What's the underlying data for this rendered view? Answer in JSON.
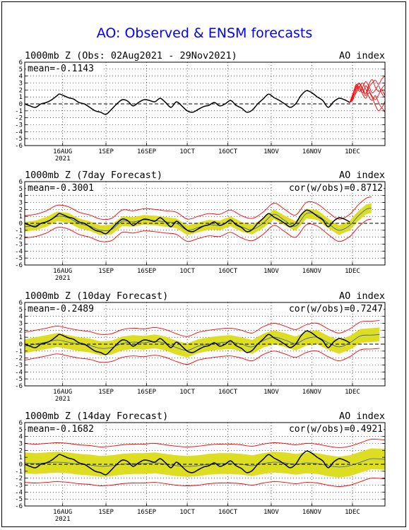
{
  "page": {
    "title": "AO: Observed & ENSM forecasts",
    "colors": {
      "title": "#0000ff",
      "observed": "#000000",
      "ensemble": "#ff0000",
      "spread": "#dddd22",
      "ensemble_mean": "#3355cc"
    }
  },
  "chart_data": [
    {
      "type": "line",
      "title": "1000mb Z (Obs: 02Aug2021 - 29Nov2021)",
      "right_label": "AO index",
      "mean_label": "mean=-0.1143",
      "cor_label": "",
      "ylim": [
        -6,
        6
      ],
      "yticks": [
        "6",
        "5",
        "4",
        "3",
        "2",
        "1",
        "0",
        "-1",
        "-2",
        "-3",
        "-4",
        "-5",
        "-6"
      ],
      "xlim": [
        0,
        133
      ],
      "xticks": [
        {
          "label": "16AUG",
          "sub": "2021",
          "x": 14
        },
        {
          "label": "1SEP",
          "sub": "",
          "x": 30
        },
        {
          "label": "16SEP",
          "sub": "",
          "x": 45
        },
        {
          "label": "1OCT",
          "sub": "",
          "x": 60
        },
        {
          "label": "16OCT",
          "sub": "",
          "x": 75
        },
        {
          "label": "1NOV",
          "sub": "",
          "x": 91
        },
        {
          "label": "16NOV",
          "sub": "",
          "x": 106
        },
        {
          "label": "1DEC",
          "sub": "",
          "x": 121
        }
      ],
      "grid": "dotted",
      "series": [
        {
          "role": "observed",
          "x": [
            0,
            2,
            4,
            6,
            8,
            10,
            12,
            13,
            16,
            18,
            20,
            22,
            24,
            26,
            28,
            30,
            32,
            34,
            36,
            38,
            40,
            42,
            44,
            46,
            48,
            50,
            52,
            54,
            56,
            58,
            60,
            62,
            64,
            66,
            68,
            70,
            72,
            74,
            76,
            78,
            80,
            82,
            84,
            86,
            88,
            90,
            92,
            94,
            96,
            98,
            100,
            102,
            104,
            106,
            108,
            110,
            112,
            114,
            116,
            118,
            120
          ],
          "y": [
            0.0,
            -0.3,
            -0.5,
            0.0,
            0.2,
            0.6,
            1.2,
            1.4,
            0.9,
            0.7,
            0.2,
            0.0,
            -0.5,
            -1.0,
            -1.2,
            -1.5,
            -0.8,
            0.0,
            0.6,
            0.4,
            -0.3,
            0.2,
            0.6,
            0.5,
            0.3,
            0.8,
            0.2,
            -0.5,
            0.3,
            -0.3,
            -1.0,
            -1.2,
            -0.8,
            -0.4,
            -0.2,
            0.2,
            -0.3,
            0.0,
            0.5,
            -0.2,
            -0.6,
            -1.2,
            -0.9,
            0.0,
            0.7,
            1.4,
            0.9,
            0.5,
            0.0,
            -0.5,
            0.0,
            1.2,
            1.9,
            1.6,
            1.0,
            0.5,
            -0.5,
            0.3,
            0.8,
            0.6,
            0.2
          ]
        },
        {
          "role": "ensemble",
          "members": [
            [
              0.2,
              1.0,
              2.5,
              3.0,
              2.2,
              1.5,
              2.8,
              3.5,
              2.4,
              1.8,
              2.0,
              1.2
            ],
            [
              0.2,
              1.4,
              2.8,
              2.2,
              1.6,
              2.6,
              1.9,
              1.1,
              0.6,
              1.3,
              2.2,
              2.8
            ],
            [
              0.2,
              0.8,
              1.6,
              2.4,
              3.0,
              2.1,
              1.0,
              0.5,
              1.2,
              0.2,
              -0.5,
              0.4
            ],
            [
              0.2,
              1.2,
              2.2,
              2.9,
              2.0,
              1.2,
              2.4,
              3.0,
              3.4,
              2.8,
              3.6,
              4.0
            ],
            [
              0.2,
              0.6,
              1.9,
              2.5,
              1.4,
              0.8,
              1.6,
              0.9,
              -0.2,
              -1.0,
              -0.6,
              -1.2
            ],
            [
              0.2,
              1.5,
              2.6,
              1.8,
              2.4,
              3.2,
              2.5,
              1.6,
              2.0,
              2.6,
              1.5,
              0.9
            ]
          ]
        }
      ]
    },
    {
      "type": "line",
      "title": "1000mb Z (7day Forecast)",
      "right_label": "AO index",
      "mean_label": "mean=-0.3001",
      "cor_label": "cor(w/obs)=0.8712",
      "ylim": [
        -6,
        6
      ],
      "yticks": [
        "6",
        "5",
        "4",
        "3",
        "2",
        "1",
        "0",
        "-1",
        "-2",
        "-3",
        "-4",
        "-5",
        "-6"
      ],
      "xlim": [
        0,
        133
      ],
      "xticks": [
        {
          "label": "16AUG",
          "sub": "2021",
          "x": 14
        },
        {
          "label": "1SEP",
          "sub": "",
          "x": 30
        },
        {
          "label": "16SEP",
          "sub": "",
          "x": 45
        },
        {
          "label": "1OCT",
          "sub": "",
          "x": 60
        },
        {
          "label": "16OCT",
          "sub": "",
          "x": 75
        },
        {
          "label": "1NOV",
          "sub": "",
          "x": 91
        },
        {
          "label": "16NOV",
          "sub": "",
          "x": 106
        },
        {
          "label": "1DEC",
          "sub": "",
          "x": 121
        }
      ],
      "grid": "dotted",
      "series": [
        {
          "role": "observed",
          "x": [
            0,
            2,
            4,
            6,
            8,
            10,
            12,
            13,
            16,
            18,
            20,
            22,
            24,
            26,
            28,
            30,
            32,
            34,
            36,
            38,
            40,
            42,
            44,
            46,
            48,
            50,
            52,
            54,
            56,
            58,
            60,
            62,
            64,
            66,
            68,
            70,
            72,
            74,
            76,
            78,
            80,
            82,
            84,
            86,
            88,
            90,
            92,
            94,
            96,
            98,
            100,
            102,
            104,
            106,
            108,
            110,
            112,
            114,
            116,
            118,
            120
          ],
          "y": [
            0.0,
            -0.3,
            -0.5,
            0.0,
            0.2,
            0.6,
            1.2,
            1.4,
            0.9,
            0.7,
            0.2,
            0.0,
            -0.5,
            -1.0,
            -1.2,
            -1.5,
            -0.8,
            0.0,
            0.6,
            0.4,
            -0.3,
            0.2,
            0.6,
            0.5,
            0.3,
            0.8,
            0.2,
            -0.5,
            0.3,
            -0.3,
            -1.0,
            -1.2,
            -0.8,
            -0.4,
            -0.2,
            0.2,
            -0.3,
            0.0,
            0.5,
            -0.2,
            -0.6,
            -1.2,
            -0.9,
            0.0,
            0.7,
            1.4,
            0.9,
            0.5,
            0.0,
            -0.5,
            0.0,
            1.2,
            1.9,
            1.6,
            1.0,
            0.5,
            -0.5,
            0.3,
            0.8,
            0.6,
            0.2
          ]
        },
        {
          "role": "forecast",
          "x": [
            0,
            4,
            8,
            12,
            16,
            20,
            24,
            28,
            32,
            36,
            40,
            44,
            48,
            52,
            56,
            60,
            64,
            68,
            72,
            76,
            80,
            84,
            88,
            92,
            96,
            100,
            104,
            108,
            112,
            116,
            120,
            123,
            126,
            128
          ],
          "y": [
            -0.5,
            -0.3,
            0.2,
            1.0,
            0.8,
            0.0,
            -0.4,
            -1.0,
            -0.9,
            0.3,
            0.2,
            0.5,
            0.4,
            0.2,
            0.0,
            -1.0,
            -0.6,
            -0.2,
            -0.3,
            0.3,
            -0.5,
            -0.9,
            0.0,
            1.3,
            0.4,
            -0.4,
            1.4,
            1.2,
            0.0,
            -1.0,
            -0.3,
            1.0,
            2.0,
            2.2
          ],
          "spread": 0.7,
          "outer": 1.6
        }
      ]
    },
    {
      "type": "line",
      "title": "1000mb Z (10day Forecast)",
      "right_label": "AO index",
      "mean_label": "mean=-0.2489",
      "cor_label": "cor(w/obs)=0.7247",
      "ylim": [
        -6,
        6
      ],
      "yticks": [
        "6",
        "5",
        "4",
        "3",
        "2",
        "1",
        "0",
        "-1",
        "-2",
        "-3",
        "-4",
        "-5",
        "-6"
      ],
      "xlim": [
        0,
        133
      ],
      "xticks": [
        {
          "label": "16AUG",
          "sub": "2021",
          "x": 14
        },
        {
          "label": "1SEP",
          "sub": "",
          "x": 30
        },
        {
          "label": "16SEP",
          "sub": "",
          "x": 45
        },
        {
          "label": "1OCT",
          "sub": "",
          "x": 60
        },
        {
          "label": "16OCT",
          "sub": "",
          "x": 75
        },
        {
          "label": "1NOV",
          "sub": "",
          "x": 91
        },
        {
          "label": "16NOV",
          "sub": "",
          "x": 106
        },
        {
          "label": "1DEC",
          "sub": "",
          "x": 121
        }
      ],
      "grid": "dotted",
      "series": [
        {
          "role": "observed",
          "x": [
            0,
            2,
            4,
            6,
            8,
            10,
            12,
            13,
            16,
            18,
            20,
            22,
            24,
            26,
            28,
            30,
            32,
            34,
            36,
            38,
            40,
            42,
            44,
            46,
            48,
            50,
            52,
            54,
            56,
            58,
            60,
            62,
            64,
            66,
            68,
            70,
            72,
            74,
            76,
            78,
            80,
            82,
            84,
            86,
            88,
            90,
            92,
            94,
            96,
            98,
            100,
            102,
            104,
            106,
            108,
            110,
            112,
            114,
            116,
            118,
            120
          ],
          "y": [
            0.0,
            -0.3,
            -0.5,
            0.0,
            0.2,
            0.6,
            1.2,
            1.4,
            0.9,
            0.7,
            0.2,
            0.0,
            -0.5,
            -1.0,
            -1.2,
            -1.5,
            -0.8,
            0.0,
            0.6,
            0.4,
            -0.3,
            0.2,
            0.6,
            0.5,
            0.3,
            0.8,
            0.2,
            -0.5,
            0.3,
            -0.3,
            -1.0,
            -1.2,
            -0.8,
            -0.4,
            -0.2,
            0.2,
            -0.3,
            0.0,
            0.5,
            -0.2,
            -0.6,
            -1.2,
            -0.9,
            0.0,
            0.7,
            1.4,
            0.9,
            0.5,
            0.0,
            -0.5,
            0.0,
            1.2,
            1.9,
            1.6,
            1.0,
            0.5,
            -0.5,
            0.3,
            0.8,
            0.6,
            0.2
          ]
        },
        {
          "role": "forecast",
          "x": [
            0,
            4,
            8,
            12,
            16,
            20,
            24,
            28,
            32,
            36,
            40,
            44,
            48,
            52,
            56,
            60,
            64,
            68,
            72,
            76,
            80,
            84,
            88,
            92,
            96,
            100,
            104,
            108,
            112,
            116,
            120,
            124,
            128,
            131
          ],
          "y": [
            -0.3,
            0.0,
            0.3,
            0.6,
            0.3,
            0.0,
            -0.2,
            -0.6,
            -0.5,
            0.1,
            0.3,
            0.2,
            0.4,
            0.1,
            -0.5,
            -0.9,
            -0.3,
            0.0,
            0.2,
            0.3,
            0.0,
            -0.4,
            0.5,
            1.0,
            0.6,
            0.1,
            0.8,
            1.0,
            0.2,
            -0.4,
            0.2,
            1.2,
            1.3,
            1.4
          ],
          "spread": 1.0,
          "outer": 2.0
        }
      ]
    },
    {
      "type": "line",
      "title": "1000mb Z (14day Forecast)",
      "right_label": "AO index",
      "mean_label": "mean=-0.1682",
      "cor_label": "cor(w/obs)=0.4921",
      "ylim": [
        -6,
        6
      ],
      "yticks": [
        "6",
        "5",
        "4",
        "3",
        "2",
        "1",
        "0",
        "-1",
        "-2",
        "-3",
        "-4",
        "-5",
        "-6"
      ],
      "xlim": [
        0,
        133
      ],
      "xticks": [
        {
          "label": "16AUG",
          "sub": "2021",
          "x": 14
        },
        {
          "label": "1SEP",
          "sub": "",
          "x": 30
        },
        {
          "label": "16SEP",
          "sub": "",
          "x": 45
        },
        {
          "label": "1OCT",
          "sub": "",
          "x": 60
        },
        {
          "label": "16OCT",
          "sub": "",
          "x": 75
        },
        {
          "label": "1NOV",
          "sub": "",
          "x": 91
        },
        {
          "label": "16NOV",
          "sub": "",
          "x": 106
        },
        {
          "label": "1DEC",
          "sub": "",
          "x": 121
        }
      ],
      "grid": "dotted",
      "series": [
        {
          "role": "observed",
          "x": [
            0,
            2,
            4,
            6,
            8,
            10,
            12,
            13,
            16,
            18,
            20,
            22,
            24,
            26,
            28,
            30,
            32,
            34,
            36,
            38,
            40,
            42,
            44,
            46,
            48,
            50,
            52,
            54,
            56,
            58,
            60,
            62,
            64,
            66,
            68,
            70,
            72,
            74,
            76,
            78,
            80,
            82,
            84,
            86,
            88,
            90,
            92,
            94,
            96,
            98,
            100,
            102,
            104,
            106,
            108,
            110,
            112,
            114,
            116,
            118,
            120
          ],
          "y": [
            0.0,
            -0.3,
            -0.5,
            0.0,
            0.2,
            0.6,
            1.2,
            1.4,
            0.9,
            0.7,
            0.2,
            0.0,
            -0.5,
            -1.0,
            -1.2,
            -1.5,
            -0.8,
            0.0,
            0.6,
            0.4,
            -0.3,
            0.2,
            0.6,
            0.5,
            0.3,
            0.8,
            0.2,
            -0.5,
            0.3,
            -0.3,
            -1.0,
            -1.2,
            -0.8,
            -0.4,
            -0.2,
            0.2,
            -0.3,
            0.0,
            0.5,
            -0.2,
            -0.6,
            -1.2,
            -0.9,
            0.0,
            0.7,
            1.4,
            0.9,
            0.5,
            0.0,
            -0.5,
            0.0,
            1.2,
            1.9,
            1.6,
            1.0,
            0.5,
            -0.5,
            0.3,
            0.8,
            0.6,
            0.2
          ]
        },
        {
          "role": "forecast",
          "x": [
            0,
            4,
            8,
            12,
            16,
            20,
            24,
            28,
            32,
            36,
            40,
            44,
            48,
            52,
            56,
            60,
            64,
            68,
            72,
            76,
            80,
            84,
            88,
            92,
            96,
            100,
            104,
            108,
            112,
            116,
            120,
            124,
            128,
            133
          ],
          "y": [
            0.2,
            0.1,
            0.2,
            0.3,
            0.2,
            0.0,
            -0.1,
            -0.3,
            -0.2,
            0.0,
            0.1,
            0.1,
            0.2,
            0.0,
            -0.2,
            -0.3,
            -0.2,
            0.0,
            0.1,
            0.1,
            0.0,
            -0.2,
            0.1,
            0.3,
            0.2,
            0.0,
            0.2,
            0.1,
            -0.2,
            -0.4,
            -0.2,
            0.3,
            0.8,
            0.7
          ],
          "spread": 1.5,
          "outer": 2.8
        }
      ]
    }
  ]
}
